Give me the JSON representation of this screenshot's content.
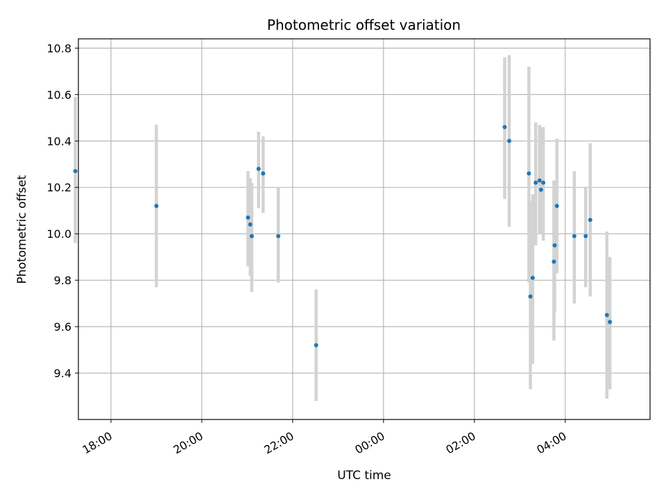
{
  "chart_data": {
    "type": "scatter",
    "title": "Photometric offset variation",
    "xlabel": "UTC time",
    "ylabel": "Photometric offset",
    "x_axis_kind": "time",
    "xlim": [
      "17:17",
      "05:52"
    ],
    "ylim": [
      9.2,
      10.84
    ],
    "xticks": [
      "18:00",
      "20:00",
      "22:00",
      "00:00",
      "02:00",
      "04:00"
    ],
    "yticks": [
      9.4,
      9.6,
      9.8,
      10.0,
      10.2,
      10.4,
      10.6,
      10.8
    ],
    "ytick_labels": [
      "9.4",
      "9.6",
      "9.8",
      "10.0",
      "10.2",
      "10.4",
      "10.6",
      "10.8"
    ],
    "grid": true,
    "marker_color": "#1f77b4",
    "errorbar_color": "#d3d3d3",
    "points": [
      {
        "x": "17:13",
        "y": 10.27,
        "ymin": 9.96,
        "ymax": 10.59
      },
      {
        "x": "19:00",
        "y": 10.12,
        "ymin": 9.77,
        "ymax": 10.47
      },
      {
        "x": "21:01",
        "y": 10.07,
        "ymin": 9.86,
        "ymax": 10.27
      },
      {
        "x": "21:04",
        "y": 10.04,
        "ymin": 9.82,
        "ymax": 10.24
      },
      {
        "x": "21:06",
        "y": 9.99,
        "ymin": 9.75,
        "ymax": 10.22
      },
      {
        "x": "21:15",
        "y": 10.28,
        "ymin": 10.11,
        "ymax": 10.44
      },
      {
        "x": "21:21",
        "y": 10.26,
        "ymin": 10.09,
        "ymax": 10.42
      },
      {
        "x": "21:41",
        "y": 9.99,
        "ymin": 9.79,
        "ymax": 10.2
      },
      {
        "x": "22:31",
        "y": 9.52,
        "ymin": 9.28,
        "ymax": 9.76
      },
      {
        "x": "02:40",
        "y": 10.46,
        "ymin": 10.15,
        "ymax": 10.76
      },
      {
        "x": "02:46",
        "y": 10.4,
        "ymin": 10.03,
        "ymax": 10.77
      },
      {
        "x": "03:12",
        "y": 10.26,
        "ymin": 9.79,
        "ymax": 10.72
      },
      {
        "x": "03:14",
        "y": 9.73,
        "ymin": 9.33,
        "ymax": 10.14
      },
      {
        "x": "03:17",
        "y": 9.81,
        "ymin": 9.44,
        "ymax": 10.17
      },
      {
        "x": "03:21",
        "y": 10.22,
        "ymin": 9.95,
        "ymax": 10.48
      },
      {
        "x": "03:26",
        "y": 10.23,
        "ymin": 10.0,
        "ymax": 10.47
      },
      {
        "x": "03:28",
        "y": 10.19,
        "ymin": 10.0,
        "ymax": 10.46
      },
      {
        "x": "03:31",
        "y": 10.22,
        "ymin": 9.97,
        "ymax": 10.46
      },
      {
        "x": "03:45",
        "y": 9.88,
        "ymin": 9.54,
        "ymax": 10.23
      },
      {
        "x": "03:46",
        "y": 9.95,
        "ymin": 9.66,
        "ymax": 10.23
      },
      {
        "x": "03:49",
        "y": 10.12,
        "ymin": 9.83,
        "ymax": 10.41
      },
      {
        "x": "04:12",
        "y": 9.99,
        "ymin": 9.7,
        "ymax": 10.27
      },
      {
        "x": "04:27",
        "y": 9.99,
        "ymin": 9.77,
        "ymax": 10.2
      },
      {
        "x": "04:33",
        "y": 10.06,
        "ymin": 9.73,
        "ymax": 10.39
      },
      {
        "x": "04:55",
        "y": 9.65,
        "ymin": 9.29,
        "ymax": 10.01
      },
      {
        "x": "04:59",
        "y": 9.62,
        "ymin": 9.33,
        "ymax": 9.9
      }
    ]
  }
}
